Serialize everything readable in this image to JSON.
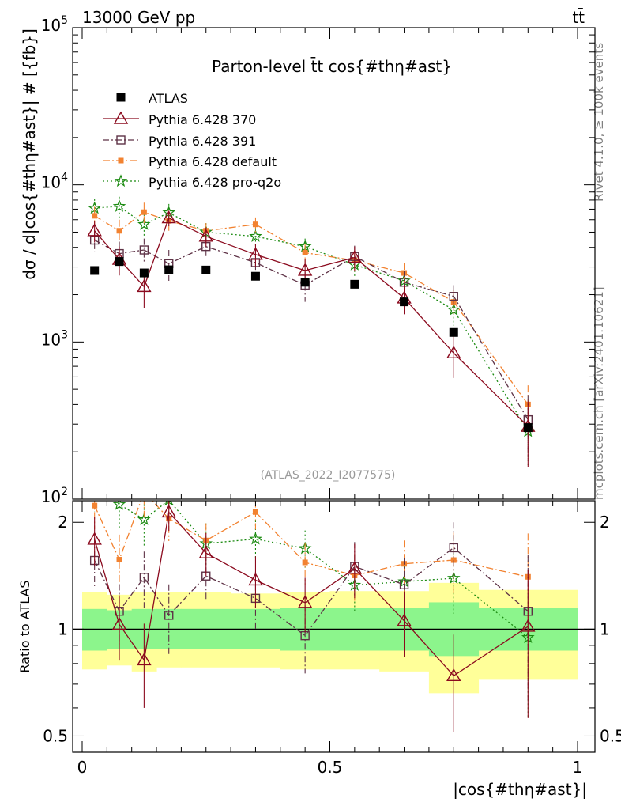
{
  "header": {
    "energy_label": "13000 GeV pp",
    "process_label": "tt̄"
  },
  "side_labels": {
    "rivet": "Rivet 4.1.0, ≥ 100k events",
    "mcplots": "mcplots.cern.ch [arXiv:2401.10621]"
  },
  "colors": {
    "data": "#000000",
    "p370": "#8b0a1e",
    "p391": "#5e3246",
    "pdefault": "#f28230",
    "pq2o": "#1a8a10",
    "band_inner": "#8cf58c",
    "band_outer": "#ffff99"
  },
  "chart_data": {
    "type": "line",
    "title": "Parton-level t̄t cos{#thη#ast}",
    "xlabel": "|cos{#thη#ast}|",
    "ylabel": "dσ / d|cos{#thη#ast}| # [{fb}]",
    "ratio_ylabel": "Ratio to ATLAS",
    "analysis_id": "(ATLAS_2022_I2077575)",
    "xlim": [
      0,
      1
    ],
    "ylim": [
      100,
      100000
    ],
    "ratio_ylim": [
      0.45,
      2.3
    ],
    "x_ticks": [
      "0",
      "0.5",
      "1"
    ],
    "y_ticks": [
      "10^2",
      "10^3",
      "10^4",
      "10^5"
    ],
    "ratio_ticks": [
      "0.5",
      "1",
      "2"
    ],
    "x": [
      0.025,
      0.075,
      0.125,
      0.175,
      0.25,
      0.35,
      0.45,
      0.55,
      0.65,
      0.75,
      0.9
    ],
    "bins": [
      [
        0,
        0.05
      ],
      [
        0.05,
        0.1
      ],
      [
        0.1,
        0.15
      ],
      [
        0.15,
        0.2
      ],
      [
        0.2,
        0.3
      ],
      [
        0.3,
        0.4
      ],
      [
        0.4,
        0.5
      ],
      [
        0.5,
        0.6
      ],
      [
        0.6,
        0.7
      ],
      [
        0.7,
        0.8
      ],
      [
        0.8,
        1.0
      ]
    ],
    "data": {
      "name": "ATLAS",
      "values": [
        2850,
        3250,
        2750,
        2880,
        2870,
        2620,
        2400,
        2330,
        1800,
        1150,
        285
      ]
    },
    "ratio_band_inner": [
      0.87,
      0.88,
      0.88,
      0.88,
      0.88,
      0.88,
      0.87,
      0.87,
      0.87,
      0.84,
      0.87,
      1.14,
      1.13,
      1.14,
      1.14,
      1.14,
      1.14,
      1.15,
      1.15,
      1.15,
      1.19,
      1.15
    ],
    "ratio_band_outer": [
      0.77,
      0.79,
      0.76,
      0.78,
      0.78,
      0.78,
      0.77,
      0.77,
      0.76,
      0.66,
      0.72,
      1.27,
      1.25,
      1.27,
      1.27,
      1.27,
      1.26,
      1.27,
      1.28,
      1.28,
      1.35,
      1.29
    ],
    "series": [
      {
        "name": "Pythia 6.428 370",
        "values": [
          5100,
          3350,
          2250,
          6150,
          4700,
          3600,
          2850,
          3450,
          1900,
          850,
          290
        ],
        "errors": [
          800,
          700,
          600,
          700,
          650,
          600,
          500,
          600,
          400,
          260,
          130
        ]
      },
      {
        "name": "Pythia 6.428 391",
        "values": [
          4450,
          3650,
          3850,
          3150,
          4050,
          3200,
          2300,
          3500,
          2400,
          1950,
          320
        ],
        "errors": [
          700,
          700,
          700,
          700,
          600,
          600,
          500,
          600,
          450,
          350,
          140
        ]
      },
      {
        "name": "Pythia 6.428 default",
        "values": [
          6350,
          5100,
          6700,
          5900,
          5100,
          5600,
          3700,
          3300,
          2750,
          1800,
          400
        ],
        "errors": [
          900,
          900,
          1000,
          800,
          600,
          600,
          500,
          500,
          450,
          350,
          130
        ]
      },
      {
        "name": "Pythia 6.428 pro-q2o",
        "values": [
          7100,
          7300,
          5600,
          6650,
          5000,
          4700,
          4050,
          3100,
          2450,
          1600,
          270
        ],
        "errors": [
          1000,
          1100,
          900,
          900,
          700,
          600,
          500,
          500,
          400,
          330,
          110
        ]
      }
    ]
  }
}
